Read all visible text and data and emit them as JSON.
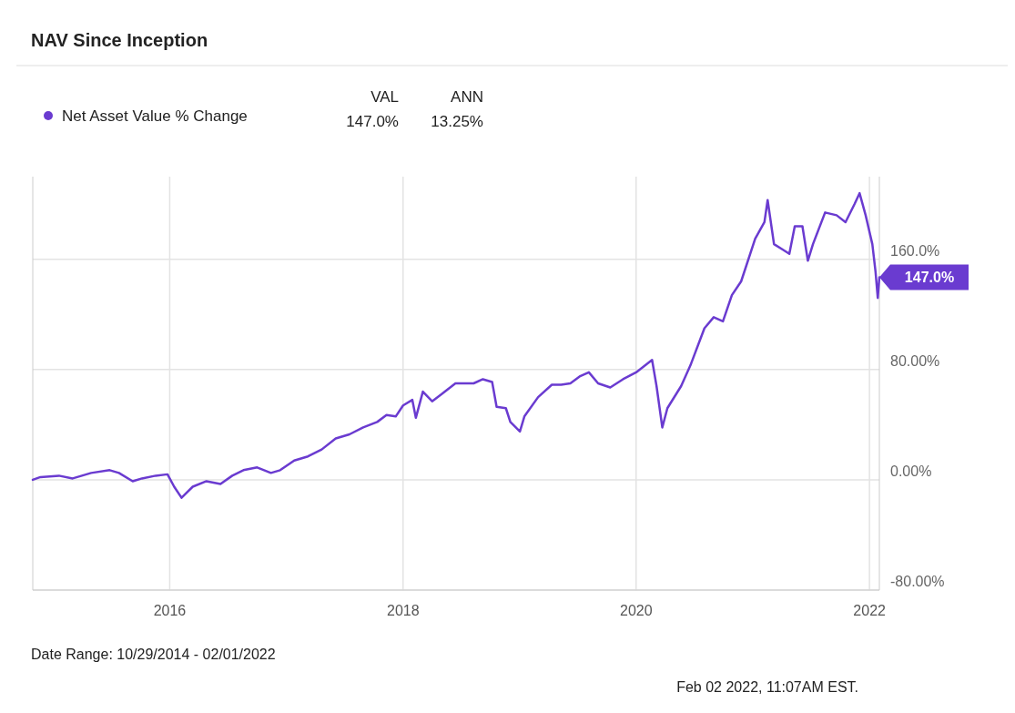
{
  "chart_data": {
    "type": "line",
    "title": "NAV Since Inception",
    "legend": "top left",
    "grid": true,
    "line_style": "solid",
    "xlim": [
      "2014-10-29",
      "2022-02-01"
    ],
    "xticks": [
      {
        "value": "2016-01-01",
        "label": "2016"
      },
      {
        "value": "2018-01-01",
        "label": "2018"
      },
      {
        "value": "2020-01-01",
        "label": "2020"
      },
      {
        "value": "2022-01-01",
        "label": "2022"
      }
    ],
    "ylim": [
      -80,
      220
    ],
    "yticks": [
      {
        "value": -80,
        "label": "-80.00%"
      },
      {
        "value": 0,
        "label": "0.00%"
      },
      {
        "value": 80,
        "label": "80.00%"
      },
      {
        "value": 160,
        "label": "160.0%"
      }
    ],
    "series": [
      {
        "name": "Net Asset Value % Change",
        "color": "#6a3bd0",
        "x": [
          "2014-10-29",
          "2014-11-22",
          "2015-01-19",
          "2015-03-03",
          "2015-04-30",
          "2015-06-27",
          "2015-07-26",
          "2015-09-07",
          "2015-10-06",
          "2015-11-18",
          "2015-12-25",
          "2016-01-15",
          "2016-02-07",
          "2016-03-13",
          "2016-04-25",
          "2016-06-08",
          "2016-07-15",
          "2016-08-19",
          "2016-10-01",
          "2016-11-13",
          "2016-12-12",
          "2017-01-25",
          "2017-03-09",
          "2017-04-21",
          "2017-06-04",
          "2017-07-17",
          "2017-08-29",
          "2017-10-12",
          "2017-11-10",
          "2017-12-09",
          "2018-01-01",
          "2018-01-30",
          "2018-02-10",
          "2018-03-04",
          "2018-04-02",
          "2018-05-01",
          "2018-06-14",
          "2018-07-13",
          "2018-08-10",
          "2018-09-08",
          "2018-10-07",
          "2018-10-21",
          "2018-11-19",
          "2018-12-03",
          "2019-01-02",
          "2019-01-16",
          "2019-02-28",
          "2019-04-12",
          "2019-05-11",
          "2019-06-09",
          "2019-07-08",
          "2019-08-06",
          "2019-09-04",
          "2019-10-12",
          "2019-11-21",
          "2020-01-01",
          "2020-02-20",
          "2020-03-05",
          "2020-03-23",
          "2020-04-08",
          "2020-05-21",
          "2020-06-19",
          "2020-08-02",
          "2020-08-31",
          "2020-09-29",
          "2020-10-27",
          "2020-11-25",
          "2021-01-08",
          "2021-02-06",
          "2021-02-16",
          "2021-03-08",
          "2021-04-05",
          "2021-04-25",
          "2021-05-12",
          "2021-06-05",
          "2021-06-22",
          "2021-07-08",
          "2021-08-15",
          "2021-09-20",
          "2021-10-18",
          "2021-11-15",
          "2021-12-01",
          "2021-12-20",
          "2022-01-10",
          "2022-01-20",
          "2022-01-27",
          "2022-02-01"
        ],
        "values": [
          0,
          2,
          3,
          1,
          5,
          7,
          5,
          -1,
          1,
          3,
          4,
          -5,
          -13,
          -5,
          -1,
          -3,
          3,
          7,
          9,
          5,
          7,
          14,
          17,
          22,
          30,
          33,
          38,
          42,
          47,
          46,
          54,
          58,
          45,
          64,
          57,
          62,
          70,
          70,
          70,
          73,
          71,
          53,
          52,
          42,
          35,
          46,
          60,
          69,
          69,
          70,
          75,
          78,
          70,
          67,
          73,
          78,
          87,
          68,
          38,
          52,
          68,
          83,
          110,
          118,
          115,
          134,
          144,
          175,
          187,
          203,
          171,
          167,
          164,
          184,
          184,
          159,
          171,
          194,
          192,
          187,
          200,
          208,
          192,
          171,
          151,
          132,
          147
        ]
      }
    ],
    "annotations": [
      "VAL",
      "ANN",
      "147.0%",
      "13.25%",
      "Date Range: 10/29/2014 - 02/01/2022",
      "Feb 02 2022, 11:07AM EST.",
      {
        "text": "147.0%",
        "x": "2022-02-01",
        "y": 147
      }
    ]
  }
}
